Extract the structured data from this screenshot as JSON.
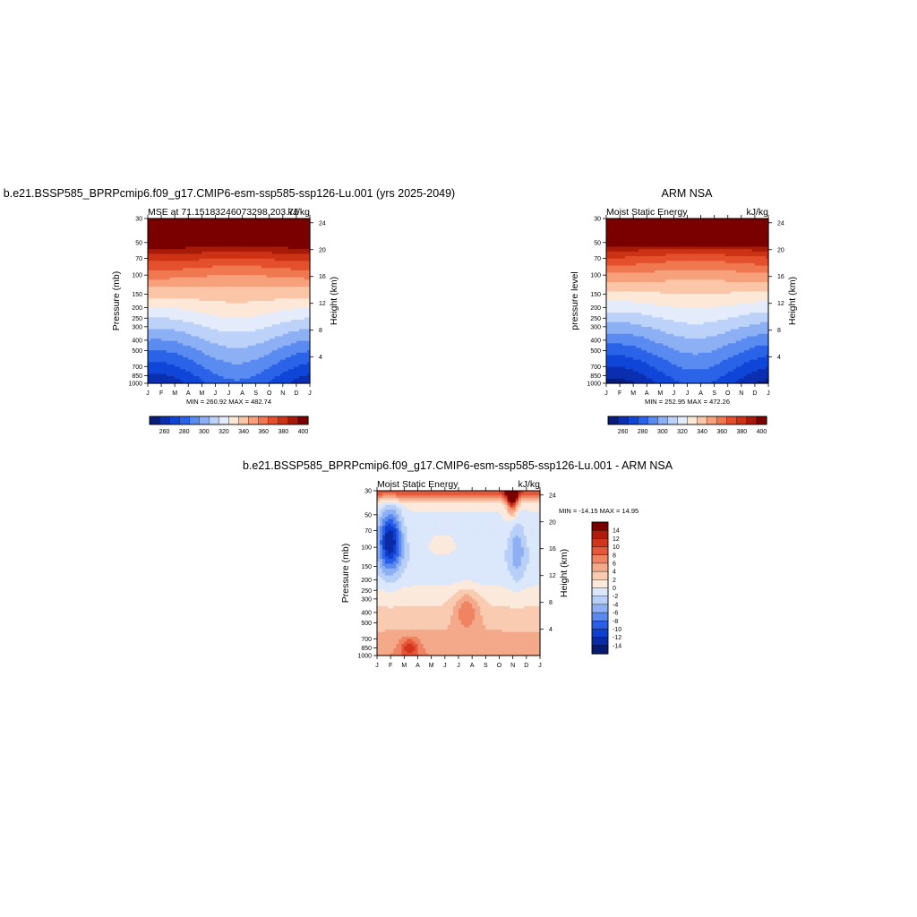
{
  "chart_data": [
    {
      "type": "heatmap",
      "title": "b.e21.BSSP585_BPRPcmip6.f09_g17.CMIP6-esm-ssp585-ssp126-Lu.001 (yrs 2025-2049)",
      "left_subtitle": "MSE at 71.15183246073298,203.76",
      "right_subtitle": "kJ/kg",
      "ylabel": "Pressure (mb)",
      "ylabel_right": "Height (km)",
      "x_ticks": [
        "J",
        "F",
        "M",
        "A",
        "M",
        "J",
        "J",
        "A",
        "S",
        "O",
        "N",
        "D",
        "J"
      ],
      "y_ticks": [
        "30",
        "50",
        "70",
        "100",
        "150",
        "200",
        "250",
        "300",
        "400",
        "500",
        "700",
        "850",
        "1000"
      ],
      "y_ticks_right": [
        "24",
        "20",
        "16",
        "12",
        "8",
        "4"
      ],
      "minmax": "MIN = 260.92  MAX = 482.74",
      "min": 260.92,
      "max": 482.74,
      "colorbar_labels": [
        "260",
        "280",
        "300",
        "320",
        "340",
        "360",
        "380",
        "400"
      ]
    },
    {
      "type": "heatmap",
      "title": "ARM NSA",
      "left_subtitle": "Moist Static Energy",
      "right_subtitle": "kJ/kg",
      "ylabel": "pressure level",
      "ylabel_right": "Height (km)",
      "x_ticks": [
        "J",
        "F",
        "M",
        "A",
        "M",
        "J",
        "J",
        "A",
        "S",
        "O",
        "N",
        "D",
        "J"
      ],
      "y_ticks": [
        "30",
        "50",
        "70",
        "100",
        "150",
        "200",
        "250",
        "300",
        "400",
        "500",
        "700",
        "850",
        "1000"
      ],
      "y_ticks_right": [
        "24",
        "20",
        "16",
        "12",
        "8",
        "4"
      ],
      "minmax": "MIN = 252.95  MAX = 472.26",
      "min": 252.95,
      "max": 472.26,
      "colorbar_labels": [
        "260",
        "280",
        "300",
        "320",
        "340",
        "360",
        "380",
        "400"
      ]
    },
    {
      "type": "heatmap",
      "title": "b.e21.BSSP585_BPRPcmip6.f09_g17.CMIP6-esm-ssp585-ssp126-Lu.001 - ARM NSA",
      "left_subtitle": "Moist Static Energy",
      "right_subtitle": "kJ/kg",
      "ylabel": "Pressure (mb)",
      "ylabel_right": "Height (km)",
      "x_ticks": [
        "J",
        "F",
        "M",
        "A",
        "M",
        "J",
        "J",
        "A",
        "S",
        "O",
        "N",
        "D",
        "J"
      ],
      "y_ticks": [
        "30",
        "50",
        "70",
        "100",
        "150",
        "200",
        "250",
        "300",
        "400",
        "500",
        "700",
        "850",
        "1000"
      ],
      "y_ticks_right": [
        "24",
        "20",
        "16",
        "12",
        "8",
        "4"
      ],
      "minmax": "MIN = -14.15 MAX =  14.95",
      "min": -14.15,
      "max": 14.95,
      "colorbar_labels": [
        "14",
        "12",
        "10",
        "8",
        "6",
        "4",
        "2",
        "0",
        "-2",
        "-4",
        "-6",
        "-8",
        "-10",
        "-12",
        "-14"
      ]
    }
  ],
  "colors": {
    "mse_palette": [
      "#081d7a",
      "#0b2fb0",
      "#1046d8",
      "#2b63e8",
      "#5a8bf0",
      "#8db0f4",
      "#bcd2f8",
      "#e4ecfb",
      "#fde8d8",
      "#fbc6a8",
      "#f6a07c",
      "#f07850",
      "#e4502c",
      "#cc3214",
      "#a81a08",
      "#7a0000"
    ],
    "diff_palette": [
      "#061a70",
      "#0a2aa6",
      "#0f40d0",
      "#2a5ee6",
      "#5b8aee",
      "#8cb0f3",
      "#b8cff7",
      "#dbe7fb",
      "#fbe9dc",
      "#f9cbb0",
      "#f4a98a",
      "#ee8462",
      "#e5583a",
      "#d2341c",
      "#b01c0c",
      "#7a0000"
    ]
  }
}
